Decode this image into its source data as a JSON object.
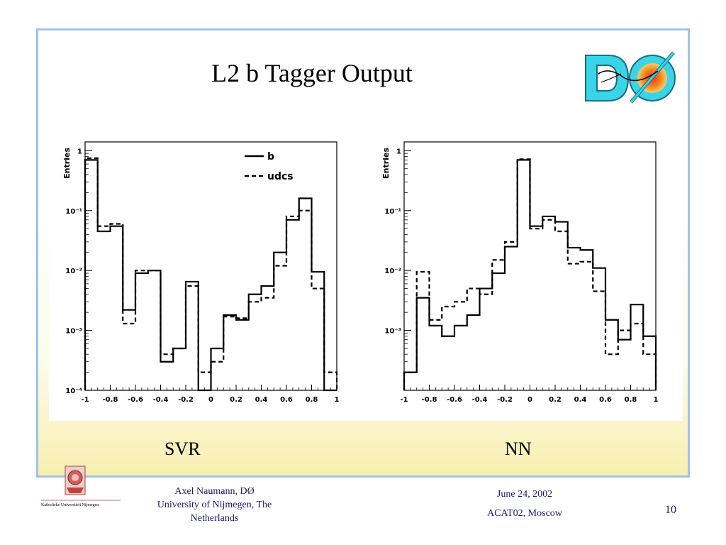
{
  "slide": {
    "title": "L2 b Tagger Output",
    "logo_text": "DØ",
    "captions": {
      "svr": "SVR",
      "nn": "NN"
    },
    "footer": {
      "author_line1": "Axel Naumann, DØ",
      "author_line2": "University of Nijmegen, The",
      "author_line3": "Netherlands",
      "date": "June 24, 2002",
      "event": "ACAT02, Moscow",
      "page": "10",
      "university_logo_text": "Katholieke Universiteit Nijmegen"
    },
    "colors": {
      "border": "#9ec3ea",
      "footer_text": "#1a1a6e",
      "logo_cyan": "#3ad4e8",
      "logo_orange": "#f08020"
    }
  },
  "chart_data": [
    {
      "type": "histogram",
      "name": "SVR",
      "ylabel": "Entries",
      "yscale": "log",
      "ylim": [
        0.0001,
        1.4
      ],
      "xlim": [
        -1,
        1
      ],
      "x_ticks": [
        "-1",
        "-0.8",
        "-0.6",
        "-0.4",
        "-0.2",
        "0",
        "0.2",
        "0.4",
        "0.6",
        "0.8",
        "1"
      ],
      "y_ticks": [
        "1",
        "10⁻¹",
        "10⁻²",
        "10⁻³",
        "10⁻⁴"
      ],
      "bin_edges": [
        -1.0,
        -0.9,
        -0.8,
        -0.7,
        -0.6,
        -0.5,
        -0.4,
        -0.3,
        -0.2,
        -0.1,
        0.0,
        0.1,
        0.2,
        0.3,
        0.4,
        0.5,
        0.6,
        0.7,
        0.8,
        0.9,
        1.0
      ],
      "legend": [
        "b",
        "udcs"
      ],
      "series": [
        {
          "name": "b",
          "style": "solid",
          "values": [
            0.7,
            0.045,
            0.055,
            0.0022,
            0.009,
            0.01,
            0.0003,
            0.0005,
            0.0065,
            0.0001,
            0.0005,
            0.0018,
            0.0015,
            0.004,
            0.0055,
            0.02,
            0.07,
            0.16,
            0.0095,
            0.0001
          ]
        },
        {
          "name": "udcs",
          "style": "dashed",
          "values": [
            0.75,
            0.055,
            0.06,
            0.0013,
            0.01,
            0.01,
            0.0004,
            0.0005,
            0.0055,
            0.0002,
            0.0003,
            0.0017,
            0.0016,
            0.003,
            0.0035,
            0.012,
            0.08,
            0.1,
            0.005,
            0.0002
          ]
        }
      ]
    },
    {
      "type": "histogram",
      "name": "NN",
      "ylabel": "Entries",
      "yscale": "log",
      "ylim": [
        0.0001,
        1.4
      ],
      "xlim": [
        -1,
        1
      ],
      "x_ticks": [
        "-1",
        "-0.8",
        "-0.6",
        "-0.4",
        "-0.2",
        "0",
        "0.2",
        "0.4",
        "0.6",
        "0.8",
        "1"
      ],
      "y_ticks": [
        "1",
        "10⁻¹",
        "10⁻²",
        "10⁻³"
      ],
      "bin_edges": [
        -1.0,
        -0.9,
        -0.8,
        -0.7,
        -0.6,
        -0.5,
        -0.4,
        -0.3,
        -0.2,
        -0.1,
        0.0,
        0.1,
        0.2,
        0.3,
        0.4,
        0.5,
        0.6,
        0.7,
        0.8,
        0.9,
        1.0
      ],
      "series": [
        {
          "name": "b",
          "style": "solid",
          "values": [
            0.0002,
            0.0035,
            0.0012,
            0.0008,
            0.0012,
            0.0018,
            0.005,
            0.009,
            0.025,
            0.7,
            0.055,
            0.08,
            0.065,
            0.024,
            0.022,
            0.011,
            0.0015,
            0.0007,
            0.0027,
            0.0008
          ]
        },
        {
          "name": "udcs",
          "style": "dashed",
          "values": [
            0.0002,
            0.0095,
            0.0015,
            0.0025,
            0.003,
            0.005,
            0.004,
            0.015,
            0.03,
            0.72,
            0.05,
            0.07,
            0.045,
            0.013,
            0.014,
            0.0045,
            0.0004,
            0.001,
            0.0013,
            0.0004
          ]
        }
      ]
    }
  ]
}
